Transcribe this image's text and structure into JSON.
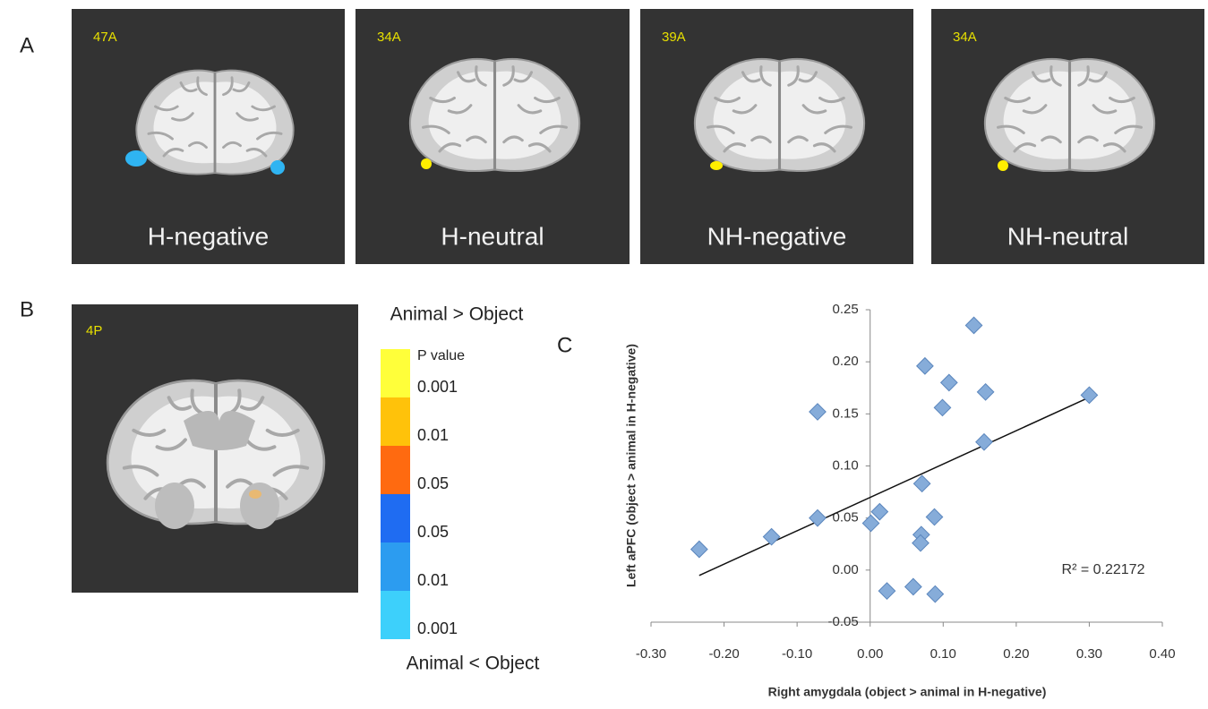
{
  "panels": {
    "A": {
      "letter": "A",
      "images": [
        {
          "label": "47A",
          "caption": "H-negative"
        },
        {
          "label": "34A",
          "caption": "H-neutral"
        },
        {
          "label": "39A",
          "caption": "NH-negative"
        },
        {
          "label": "34A",
          "caption": "NH-neutral"
        }
      ]
    },
    "B": {
      "letter": "B",
      "image_label": "4P",
      "colorbar": {
        "top_label": "Animal > Object",
        "title": "P value",
        "levels": [
          "0.001",
          "0.01",
          "0.05",
          "0.05",
          "0.01",
          "0.001"
        ],
        "colors": [
          "#ffff3a",
          "#ffc20a",
          "#ff6a10",
          "#1f6cf2",
          "#2c9cf0",
          "#3dd0fb"
        ],
        "bottom_label": "Animal < Object"
      }
    },
    "C": {
      "letter": "C"
    }
  },
  "chart_data": {
    "type": "scatter",
    "x_label": "Right amygdala (object > animal in H-negative)",
    "y_label": "Left aPFC (object > animal in H-negative)",
    "x": [
      -0.234,
      -0.135,
      -0.072,
      -0.072,
      0.142,
      0.075,
      0.108,
      0.158,
      0.3,
      0.099,
      0.156,
      0.071,
      0.013,
      0.001,
      0.088,
      0.07,
      0.069,
      0.023,
      0.059,
      0.089
    ],
    "values": [
      0.02,
      0.032,
      0.152,
      0.05,
      0.235,
      0.196,
      0.18,
      0.171,
      0.168,
      0.156,
      0.123,
      0.083,
      0.056,
      0.045,
      0.051,
      0.034,
      0.026,
      -0.02,
      -0.016,
      -0.023
    ],
    "color": "#86acd9",
    "trendline": true,
    "annotation": "R² = 0.22172",
    "xlim": [
      -0.3,
      0.4
    ],
    "ylim": [
      -0.05,
      0.25
    ],
    "xticks": [
      {
        "value": -0.3,
        "label": "-0.30"
      },
      {
        "value": -0.2,
        "label": "-0.20"
      },
      {
        "value": -0.1,
        "label": "-0.10"
      },
      {
        "value": 0,
        "label": "0.00"
      },
      {
        "value": 0.1,
        "label": "0.10"
      },
      {
        "value": 0.2,
        "label": "0.20"
      },
      {
        "value": 0.3,
        "label": "0.30"
      },
      {
        "value": 0.4,
        "label": "0.40"
      }
    ],
    "yticks": [
      {
        "value": -0.05,
        "label": "-0.05"
      },
      {
        "value": 0,
        "label": "0.00"
      },
      {
        "value": 0.05,
        "label": "0.05"
      },
      {
        "value": 0.1,
        "label": "0.10"
      },
      {
        "value": 0.15,
        "label": "0.15"
      },
      {
        "value": 0.2,
        "label": "0.20"
      },
      {
        "value": 0.25,
        "label": "0.25"
      }
    ]
  }
}
